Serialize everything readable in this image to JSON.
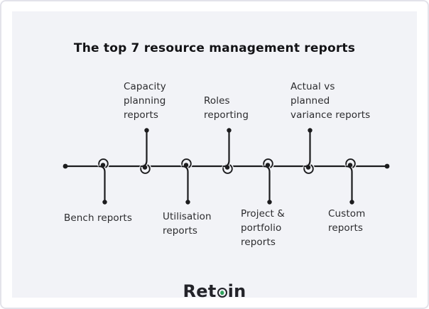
{
  "title": "The top 7 resource management reports",
  "timeline": {
    "items": [
      {
        "label": "Bench reports",
        "display": "Bench reports",
        "position": "below"
      },
      {
        "label": "Capacity planning reports",
        "display": "Capacity\nplanning\nreports",
        "position": "above"
      },
      {
        "label": "Utilisation reports",
        "display": "Utilisation\nreports",
        "position": "below"
      },
      {
        "label": "Roles reporting",
        "display": "Roles\nreporting",
        "position": "above"
      },
      {
        "label": "Project & portfolio reports",
        "display": "Project &\nportfolio\nreports",
        "position": "below"
      },
      {
        "label": "Actual vs planned variance reports",
        "display": "Actual vs\nplanned\nvariance reports",
        "position": "above"
      },
      {
        "label": "Custom reports",
        "display": "Custom\nreports",
        "position": "below"
      }
    ]
  },
  "footer": {
    "brand": "Retain",
    "brand_pre": "Ret",
    "brand_post": "in"
  },
  "colors": {
    "panel_bg": "#f2f3f7",
    "line_ink": "#1c1c1e",
    "label_text": "#2b2b2e",
    "accent_green": "#30a15b"
  }
}
